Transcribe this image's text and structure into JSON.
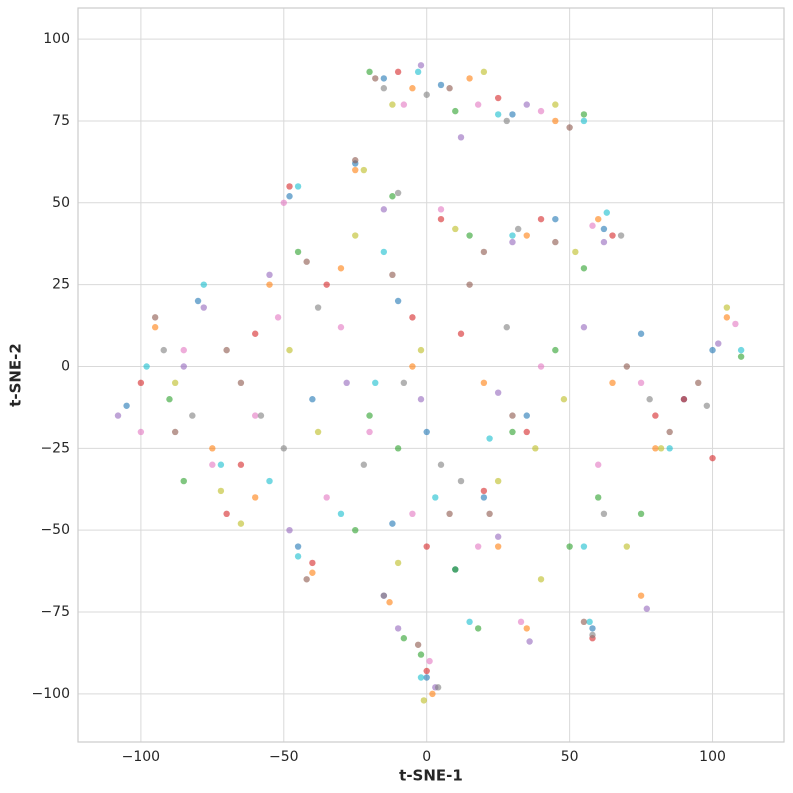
{
  "chart_data": {
    "type": "scatter",
    "x_label": "t-SNE-1",
    "y_label": "t-SNE-2",
    "xlim": [
      -122,
      125
    ],
    "ylim": [
      -114.7,
      109.5
    ],
    "grid": true,
    "alpha": 0.6,
    "xticks": [
      {
        "value": -100,
        "label": "−100"
      },
      {
        "value": -50,
        "label": "−50"
      },
      0,
      50,
      100
    ],
    "yticks": [
      {
        "value": -100,
        "label": "−100"
      },
      {
        "value": -75,
        "label": "−75"
      },
      {
        "value": -50,
        "label": "−50"
      },
      {
        "value": -25,
        "label": "−25"
      },
      0,
      25,
      50,
      75,
      100
    ],
    "series": [
      {
        "color": "#1f77b4",
        "x": [
          -15,
          5,
          30,
          -48,
          62,
          -105,
          -80,
          -40,
          -10,
          0,
          35,
          75,
          100,
          -45,
          0,
          20,
          58,
          -12,
          45,
          -25,
          10,
          90
        ],
        "y": [
          88,
          86,
          77,
          52,
          42,
          -12,
          20,
          -10,
          20,
          -20,
          -15,
          10,
          5,
          -55,
          -95,
          -40,
          -80,
          -48,
          45,
          62,
          -62,
          -10
        ]
      },
      {
        "color": "#ff7f0e",
        "x": [
          -5,
          15,
          45,
          -25,
          35,
          60,
          -95,
          -75,
          -55,
          -30,
          -5,
          20,
          65,
          105,
          80,
          -40,
          25,
          -13,
          35,
          75,
          2,
          -60
        ],
        "y": [
          85,
          88,
          75,
          60,
          40,
          45,
          12,
          -25,
          25,
          30,
          0,
          -5,
          -5,
          15,
          -25,
          -63,
          -55,
          -72,
          -80,
          -70,
          -100,
          -40
        ]
      },
      {
        "color": "#2ca02c",
        "x": [
          10,
          -20,
          55,
          -12,
          15,
          55,
          -90,
          -85,
          -45,
          -20,
          -10,
          45,
          75,
          110,
          60,
          -25,
          10,
          -8,
          18,
          -2,
          50,
          30
        ],
        "y": [
          78,
          90,
          77,
          52,
          40,
          30,
          -10,
          -35,
          35,
          -15,
          -25,
          5,
          -45,
          3,
          -40,
          -50,
          -62,
          -83,
          -80,
          -88,
          -55,
          -20
        ]
      },
      {
        "color": "#d62728",
        "x": [
          25,
          -10,
          5,
          -48,
          40,
          65,
          -100,
          -70,
          -60,
          -35,
          -5,
          35,
          90,
          100,
          80,
          -40,
          0,
          20,
          58,
          0,
          -65,
          12
        ],
        "y": [
          82,
          90,
          45,
          55,
          45,
          40,
          -5,
          -45,
          10,
          25,
          15,
          -20,
          -10,
          -28,
          -15,
          -60,
          -55,
          -38,
          -83,
          -93,
          -30,
          10
        ]
      },
      {
        "color": "#9467bd",
        "x": [
          12,
          -2,
          35,
          -15,
          30,
          62,
          -108,
          -78,
          -55,
          -28,
          -2,
          25,
          55,
          102,
          -48,
          -15,
          25,
          -10,
          36,
          77,
          3,
          -85
        ],
        "y": [
          70,
          92,
          80,
          48,
          38,
          38,
          -15,
          18,
          28,
          -5,
          -10,
          -8,
          12,
          7,
          -50,
          -70,
          -52,
          -80,
          -84,
          -74,
          -98,
          0
        ]
      },
      {
        "color": "#8c564b",
        "x": [
          -18,
          8,
          50,
          -25,
          20,
          45,
          -95,
          -88,
          -65,
          -42,
          -12,
          30,
          70,
          95,
          85,
          -42,
          8,
          22,
          55,
          -3,
          -70,
          15
        ],
        "y": [
          88,
          85,
          73,
          63,
          35,
          38,
          15,
          -20,
          -5,
          32,
          28,
          -15,
          0,
          -5,
          -20,
          -65,
          -45,
          -45,
          -78,
          -85,
          5,
          25
        ]
      },
      {
        "color": "#e377c2",
        "x": [
          -8,
          18,
          40,
          -50,
          5,
          58,
          -100,
          -75,
          -52,
          -30,
          -20,
          40,
          60,
          108,
          75,
          -35,
          -5,
          18,
          33,
          1,
          -60,
          -85
        ],
        "y": [
          80,
          80,
          78,
          50,
          48,
          43,
          -20,
          -30,
          15,
          12,
          -20,
          0,
          -30,
          13,
          -5,
          -40,
          -45,
          -55,
          -78,
          -90,
          -15,
          5
        ]
      },
      {
        "color": "#7f7f7f",
        "x": [
          0,
          -15,
          28,
          -10,
          32,
          68,
          -92,
          -82,
          -58,
          -38,
          -8,
          28,
          78,
          98,
          62,
          -22,
          12,
          -15,
          58,
          4,
          -50,
          5
        ],
        "y": [
          83,
          85,
          75,
          53,
          42,
          40,
          5,
          -15,
          -15,
          18,
          -5,
          12,
          -10,
          -12,
          -45,
          -30,
          -35,
          -70,
          -82,
          -98,
          -25,
          -30
        ]
      },
      {
        "color": "#bcbd22",
        "x": [
          20,
          -12,
          45,
          -22,
          10,
          52,
          -88,
          -72,
          -48,
          -25,
          -2,
          38,
          82,
          105,
          70,
          -38,
          -10,
          25,
          40,
          -1,
          -65,
          48
        ],
        "y": [
          90,
          80,
          80,
          60,
          42,
          35,
          -5,
          -38,
          5,
          40,
          5,
          -25,
          -25,
          18,
          -55,
          -20,
          -60,
          -35,
          -65,
          -102,
          -48,
          -10
        ]
      },
      {
        "color": "#17becf",
        "x": [
          -3,
          25,
          55,
          -45,
          30,
          63,
          -98,
          -78,
          -55,
          -15,
          -18,
          22,
          85,
          110,
          55,
          -45,
          3,
          15,
          57,
          -2,
          -72,
          -30
        ],
        "y": [
          90,
          77,
          75,
          55,
          40,
          47,
          0,
          25,
          -35,
          35,
          -5,
          -22,
          -25,
          5,
          -55,
          -58,
          -40,
          -78,
          -78,
          -95,
          -30,
          -45
        ]
      }
    ]
  }
}
